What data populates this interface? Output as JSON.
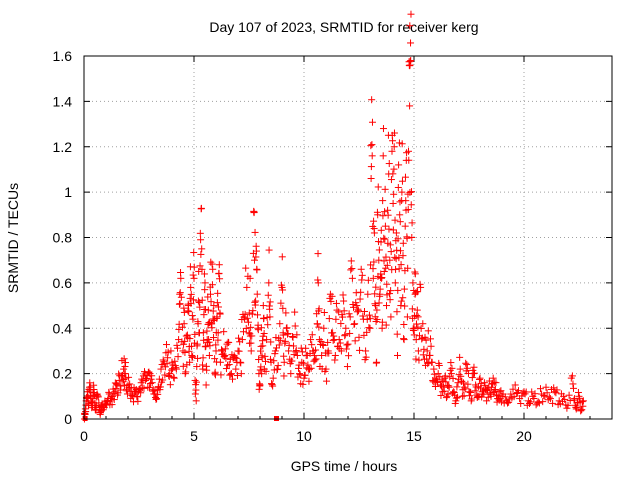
{
  "chart_data": {
    "type": "scatter",
    "title": "Day 107 of 2023, SRMTID for receiver kerg",
    "xlabel": "GPS time / hours",
    "ylabel": "SRMTID / TECUs",
    "xlim": [
      0,
      24
    ],
    "ylim": [
      0,
      1.6
    ],
    "x_ticks": [
      0,
      5,
      10,
      15,
      20
    ],
    "x_tick_labels": [
      "0",
      "5",
      "10",
      "15",
      "20"
    ],
    "y_ticks": [
      0,
      0.2,
      0.4,
      0.6,
      0.8,
      1.0,
      1.2,
      1.4,
      1.6
    ],
    "y_tick_labels": [
      "0",
      "0.2",
      "0.4",
      "0.6",
      "0.8",
      "1",
      "1.2",
      "1.4",
      "1.6"
    ],
    "grid": true,
    "marker": "plus",
    "series": [
      {
        "name": "SRMTID",
        "color": "#ff0000",
        "points": [
          [
            0.02,
            0.0
          ],
          [
            0.05,
            0.02
          ],
          [
            0.1,
            0.08
          ],
          [
            0.15,
            0.12
          ],
          [
            0.2,
            0.06
          ],
          [
            0.25,
            0.14
          ],
          [
            0.3,
            0.1
          ],
          [
            0.35,
            0.05
          ],
          [
            0.4,
            0.09
          ],
          [
            0.45,
            0.13
          ],
          [
            0.5,
            0.07
          ],
          [
            0.55,
            0.04
          ],
          [
            0.6,
            0.11
          ],
          [
            0.7,
            0.05
          ],
          [
            0.75,
            0.03
          ],
          [
            0.8,
            0.06
          ],
          [
            0.9,
            0.05
          ],
          [
            1.0,
            0.07
          ],
          [
            1.1,
            0.09
          ],
          [
            1.2,
            0.08
          ],
          [
            1.3,
            0.1
          ],
          [
            1.4,
            0.12
          ],
          [
            1.5,
            0.15
          ],
          [
            1.6,
            0.17
          ],
          [
            1.7,
            0.19
          ],
          [
            1.8,
            0.22
          ],
          [
            1.85,
            0.2
          ],
          [
            1.9,
            0.18
          ],
          [
            2.0,
            0.15
          ],
          [
            2.1,
            0.12
          ],
          [
            2.2,
            0.11
          ],
          [
            2.3,
            0.12
          ],
          [
            2.4,
            0.1
          ],
          [
            2.5,
            0.13
          ],
          [
            2.6,
            0.16
          ],
          [
            2.7,
            0.19
          ],
          [
            2.8,
            0.17
          ],
          [
            2.9,
            0.14
          ],
          [
            3.0,
            0.2
          ],
          [
            3.1,
            0.16
          ],
          [
            3.2,
            0.11
          ],
          [
            3.3,
            0.09
          ],
          [
            3.4,
            0.14
          ],
          [
            3.5,
            0.22
          ],
          [
            3.6,
            0.26
          ],
          [
            3.7,
            0.23
          ],
          [
            3.8,
            0.27
          ],
          [
            3.9,
            0.2
          ],
          [
            4.0,
            0.25
          ],
          [
            4.1,
            0.18
          ],
          [
            4.2,
            0.22
          ],
          [
            4.3,
            0.35
          ],
          [
            4.35,
            0.55
          ],
          [
            4.4,
            0.62
          ],
          [
            4.5,
            0.3
          ],
          [
            4.55,
            0.42
          ],
          [
            4.6,
            0.2
          ],
          [
            4.7,
            0.37
          ],
          [
            4.75,
            0.5
          ],
          [
            4.8,
            0.25
          ],
          [
            4.85,
            0.58
          ],
          [
            4.9,
            0.28
          ],
          [
            4.95,
            0.44
          ],
          [
            5.0,
            0.62
          ],
          [
            5.05,
            0.17
          ],
          [
            5.1,
            0.08
          ],
          [
            5.15,
            0.33
          ],
          [
            5.2,
            0.52
          ],
          [
            5.25,
            0.38
          ],
          [
            5.3,
            0.79
          ],
          [
            5.35,
            0.75
          ],
          [
            5.4,
            0.22
          ],
          [
            5.45,
            0.46
          ],
          [
            5.5,
            0.6
          ],
          [
            5.55,
            0.15
          ],
          [
            5.6,
            0.35
          ],
          [
            5.65,
            0.48
          ],
          [
            5.7,
            0.28
          ],
          [
            5.75,
            0.55
          ],
          [
            5.8,
            0.42
          ],
          [
            5.85,
            0.66
          ],
          [
            5.9,
            0.5
          ],
          [
            5.95,
            0.2
          ],
          [
            6.0,
            0.3
          ],
          [
            6.05,
            0.45
          ],
          [
            6.1,
            0.38
          ],
          [
            6.15,
            0.68
          ],
          [
            6.2,
            0.25
          ],
          [
            6.3,
            0.3
          ],
          [
            6.4,
            0.28
          ],
          [
            6.5,
            0.33
          ],
          [
            6.6,
            0.24
          ],
          [
            6.7,
            0.2
          ],
          [
            6.8,
            0.27
          ],
          [
            6.9,
            0.22
          ],
          [
            7.0,
            0.3
          ],
          [
            7.1,
            0.25
          ],
          [
            7.2,
            0.35
          ],
          [
            7.3,
            0.44
          ],
          [
            7.4,
            0.58
          ],
          [
            7.5,
            0.38
          ],
          [
            7.55,
            0.62
          ],
          [
            7.6,
            0.3
          ],
          [
            7.7,
            0.73
          ],
          [
            7.75,
            0.7
          ],
          [
            7.8,
            0.52
          ],
          [
            7.85,
            0.66
          ],
          [
            7.9,
            0.4
          ],
          [
            7.95,
            0.2
          ],
          [
            8.0,
            0.15
          ],
          [
            8.05,
            0.32
          ],
          [
            8.1,
            0.27
          ],
          [
            8.15,
            0.5
          ],
          [
            8.2,
            0.22
          ],
          [
            8.3,
            0.35
          ],
          [
            8.4,
            0.6
          ],
          [
            8.45,
            0.45
          ],
          [
            8.5,
            0.25
          ],
          [
            8.6,
            0.18
          ],
          [
            8.7,
            0.3
          ],
          [
            8.8,
            0.22
          ],
          [
            8.9,
            0.42
          ],
          [
            9.0,
            0.58
          ],
          [
            9.05,
            0.38
          ],
          [
            9.1,
            0.25
          ],
          [
            9.2,
            0.4
          ],
          [
            9.3,
            0.3
          ],
          [
            9.4,
            0.2
          ],
          [
            9.5,
            0.36
          ],
          [
            9.6,
            0.41
          ],
          [
            9.7,
            0.28
          ],
          [
            9.8,
            0.2
          ],
          [
            9.9,
            0.25
          ],
          [
            10.0,
            0.18
          ],
          [
            10.1,
            0.28
          ],
          [
            10.2,
            0.22
          ],
          [
            10.3,
            0.35
          ],
          [
            10.4,
            0.3
          ],
          [
            10.5,
            0.26
          ],
          [
            10.6,
            0.42
          ],
          [
            10.65,
            0.6
          ],
          [
            10.7,
            0.35
          ],
          [
            10.8,
            0.28
          ],
          [
            10.9,
            0.4
          ],
          [
            11.0,
            0.22
          ],
          [
            11.1,
            0.3
          ],
          [
            11.2,
            0.55
          ],
          [
            11.3,
            0.38
          ],
          [
            11.4,
            0.26
          ],
          [
            11.5,
            0.48
          ],
          [
            11.6,
            0.35
          ],
          [
            11.7,
            0.3
          ],
          [
            11.8,
            0.52
          ],
          [
            11.9,
            0.4
          ],
          [
            12.0,
            0.33
          ],
          [
            12.1,
            0.45
          ],
          [
            12.2,
            0.62
          ],
          [
            12.3,
            0.42
          ],
          [
            12.4,
            0.5
          ],
          [
            12.5,
            0.36
          ],
          [
            12.6,
            0.66
          ],
          [
            12.7,
            0.44
          ],
          [
            12.8,
            0.3
          ],
          [
            12.9,
            0.55
          ],
          [
            13.0,
            0.4
          ],
          [
            13.05,
            1.06
          ],
          [
            13.1,
            1.16
          ],
          [
            13.15,
            0.62
          ],
          [
            13.2,
            0.82
          ],
          [
            13.25,
            0.5
          ],
          [
            13.3,
            0.25
          ],
          [
            13.35,
            0.9
          ],
          [
            13.4,
            0.7
          ],
          [
            13.45,
            0.55
          ],
          [
            13.5,
            0.78
          ],
          [
            13.55,
            0.4
          ],
          [
            13.6,
            1.16
          ],
          [
            13.65,
            0.65
          ],
          [
            13.7,
            0.85
          ],
          [
            13.75,
            0.5
          ],
          [
            13.8,
            0.92
          ],
          [
            13.85,
            1.08
          ],
          [
            13.9,
            0.7
          ],
          [
            13.95,
            0.45
          ],
          [
            14.0,
            1.18
          ],
          [
            14.05,
            0.95
          ],
          [
            14.1,
            1.2
          ],
          [
            14.15,
            0.6
          ],
          [
            14.2,
            0.82
          ],
          [
            14.25,
            0.28
          ],
          [
            14.3,
            1.12
          ],
          [
            14.35,
            0.9
          ],
          [
            14.4,
            0.5
          ],
          [
            14.45,
            1.0
          ],
          [
            14.5,
            0.72
          ],
          [
            14.55,
            0.35
          ],
          [
            14.6,
            0.85
          ],
          [
            14.65,
            1.14
          ],
          [
            14.7,
            0.45
          ],
          [
            14.75,
            1.18
          ],
          [
            14.8,
            1.38
          ],
          [
            14.82,
            1.56
          ],
          [
            14.85,
            1.58
          ],
          [
            14.9,
            0.8
          ],
          [
            14.95,
            0.6
          ],
          [
            15.0,
            0.4
          ],
          [
            15.05,
            0.55
          ],
          [
            15.1,
            0.35
          ],
          [
            15.15,
            0.48
          ],
          [
            15.2,
            0.3
          ],
          [
            15.3,
            0.58
          ],
          [
            15.4,
            0.42
          ],
          [
            15.5,
            0.36
          ],
          [
            15.6,
            0.3
          ],
          [
            15.7,
            0.28
          ],
          [
            15.8,
            0.25
          ],
          [
            15.9,
            0.22
          ],
          [
            16.0,
            0.18
          ],
          [
            16.1,
            0.2
          ],
          [
            16.2,
            0.15
          ],
          [
            16.3,
            0.12
          ],
          [
            16.4,
            0.18
          ],
          [
            16.5,
            0.1
          ],
          [
            16.6,
            0.14
          ],
          [
            16.7,
            0.2
          ],
          [
            16.8,
            0.12
          ],
          [
            16.9,
            0.08
          ],
          [
            17.0,
            0.16
          ],
          [
            17.1,
            0.22
          ],
          [
            17.2,
            0.1
          ],
          [
            17.3,
            0.14
          ],
          [
            17.4,
            0.24
          ],
          [
            17.5,
            0.12
          ],
          [
            17.6,
            0.08
          ],
          [
            17.7,
            0.2
          ],
          [
            17.8,
            0.15
          ],
          [
            17.9,
            0.1
          ],
          [
            18.0,
            0.18
          ],
          [
            18.1,
            0.12
          ],
          [
            18.2,
            0.16
          ],
          [
            18.3,
            0.08
          ],
          [
            18.4,
            0.14
          ],
          [
            18.5,
            0.1
          ],
          [
            18.6,
            0.18
          ],
          [
            18.7,
            0.13
          ],
          [
            18.8,
            0.09
          ],
          [
            18.9,
            0.12
          ],
          [
            19.0,
            0.1
          ],
          [
            19.2,
            0.08
          ],
          [
            19.4,
            0.11
          ],
          [
            19.6,
            0.15
          ],
          [
            19.8,
            0.09
          ],
          [
            20.0,
            0.12
          ],
          [
            20.2,
            0.08
          ],
          [
            20.4,
            0.1
          ],
          [
            20.6,
            0.07
          ],
          [
            20.8,
            0.11
          ],
          [
            21.0,
            0.14
          ],
          [
            21.2,
            0.09
          ],
          [
            21.4,
            0.12
          ],
          [
            21.6,
            0.08
          ],
          [
            21.8,
            0.1
          ],
          [
            22.0,
            0.06
          ],
          [
            22.2,
            0.19
          ],
          [
            22.3,
            0.09
          ],
          [
            22.4,
            0.05
          ],
          [
            22.5,
            0.1
          ],
          [
            22.6,
            0.04
          ],
          [
            22.7,
            0.08
          ]
        ]
      }
    ],
    "bottom_markers": [
      0.05,
      8.75
    ]
  }
}
